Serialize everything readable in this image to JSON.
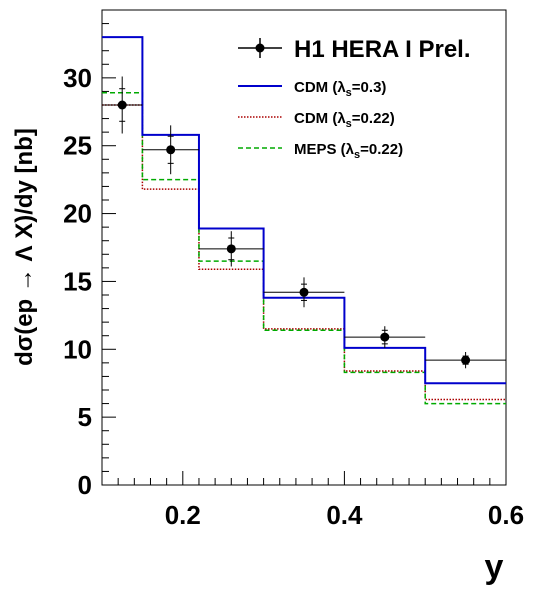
{
  "chart_data": {
    "type": "line",
    "xlabel": "y",
    "ylabel": "dσ(ep → Λ X)/dy [nb]",
    "xlim": [
      0.1,
      0.6
    ],
    "ylim": [
      0,
      35
    ],
    "x_ticks": [
      0.2,
      0.4,
      0.6
    ],
    "x_tick_labels": [
      "0.2",
      "0.4",
      "0.6"
    ],
    "y_ticks": [
      0,
      5,
      10,
      15,
      20,
      25,
      30
    ],
    "y_tick_labels": [
      "0",
      "5",
      "10",
      "15",
      "20",
      "25",
      "30"
    ],
    "grid": false,
    "legend_position": "top-right",
    "bin_edges": [
      0.1,
      0.15,
      0.22,
      0.3,
      0.4,
      0.5,
      0.6
    ],
    "data": {
      "name": "H1 HERA I Prel.",
      "x": [
        0.125,
        0.185,
        0.26,
        0.35,
        0.45,
        0.55
      ],
      "y": [
        28.0,
        24.7,
        17.4,
        14.2,
        10.9,
        9.2
      ],
      "stat_err": [
        1.2,
        1.0,
        0.8,
        0.6,
        0.5,
        0.3
      ],
      "total_err": [
        2.1,
        1.8,
        1.3,
        1.1,
        0.8,
        0.6
      ],
      "color": "#000000"
    },
    "series": [
      {
        "name": "CDM (λs=0.3)",
        "label_main": "CDM (λ",
        "label_sub": "s",
        "label_tail": "=0.3)",
        "values": [
          33.0,
          25.8,
          18.9,
          13.8,
          10.1,
          7.5
        ],
        "color": "#0000cc",
        "style": "solid"
      },
      {
        "name": "CDM (λs=0.22)",
        "label_main": "CDM (λ",
        "label_sub": "s",
        "label_tail": "=0.22)",
        "values": [
          28.0,
          21.8,
          15.9,
          11.5,
          8.4,
          6.3
        ],
        "color": "#aa0000",
        "style": "dotted"
      },
      {
        "name": "MEPS (λs=0.22)",
        "label_main": "MEPS (λ",
        "label_sub": "s",
        "label_tail": "=0.22)",
        "values": [
          28.9,
          22.5,
          16.5,
          11.4,
          8.3,
          6.0
        ],
        "color": "#00aa00",
        "style": "dashed"
      }
    ]
  }
}
